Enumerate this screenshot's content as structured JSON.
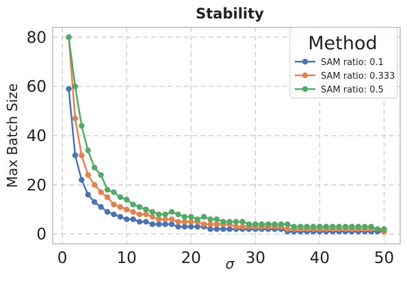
{
  "chart_data": {
    "type": "line",
    "title": "Stability",
    "xlabel": "σ",
    "ylabel": "Max Batch Size",
    "xlim": [
      -1.5,
      52.5
    ],
    "ylim": [
      -4,
      84
    ],
    "xticks": [
      0,
      10,
      20,
      30,
      40,
      50
    ],
    "yticks": [
      0,
      20,
      40,
      60,
      80
    ],
    "grid": true,
    "legend": {
      "title": "Method",
      "position": "top-right"
    },
    "x": [
      1,
      2,
      3,
      4,
      5,
      6,
      7,
      8,
      9,
      10,
      11,
      12,
      13,
      14,
      15,
      16,
      17,
      18,
      19,
      20,
      21,
      22,
      23,
      24,
      25,
      26,
      27,
      28,
      29,
      30,
      31,
      32,
      33,
      34,
      35,
      36,
      37,
      38,
      39,
      40,
      41,
      42,
      43,
      44,
      45,
      46,
      47,
      48,
      49,
      50
    ],
    "series": [
      {
        "name": "SAM ratio: 0.1",
        "color": "#4c72b0",
        "values": [
          59,
          32,
          22,
          16,
          13,
          11,
          9,
          8,
          7,
          6,
          6,
          5,
          5,
          4,
          4,
          4,
          4,
          3,
          3,
          3,
          3,
          3,
          2,
          2,
          2,
          2,
          2,
          2,
          2,
          2,
          2,
          2,
          2,
          2,
          1,
          1,
          1,
          1,
          1,
          1,
          1,
          1,
          1,
          1,
          1,
          1,
          1,
          1,
          1,
          1
        ]
      },
      {
        "name": "SAM ratio: 0.333",
        "color": "#dd8452",
        "values": [
          80,
          47,
          32,
          24,
          20,
          17,
          15,
          12,
          11,
          10,
          9,
          8,
          8,
          7,
          6,
          6,
          6,
          5,
          5,
          5,
          5,
          4,
          4,
          4,
          4,
          4,
          3,
          3,
          3,
          3,
          3,
          3,
          3,
          3,
          2,
          2,
          2,
          2,
          2,
          2,
          2,
          2,
          2,
          2,
          2,
          2,
          2,
          2,
          2,
          1
        ]
      },
      {
        "name": "SAM ratio: 0.5",
        "color": "#55a868",
        "values": [
          80,
          60,
          44,
          34,
          27,
          24,
          18,
          17,
          15,
          14,
          12,
          11,
          10,
          9,
          8,
          8,
          9,
          8,
          7,
          7,
          6,
          7,
          6,
          6,
          5,
          5,
          5,
          5,
          4,
          4,
          4,
          4,
          4,
          4,
          4,
          3,
          3,
          3,
          3,
          3,
          3,
          3,
          3,
          3,
          3,
          3,
          3,
          3,
          2,
          2
        ]
      }
    ]
  }
}
